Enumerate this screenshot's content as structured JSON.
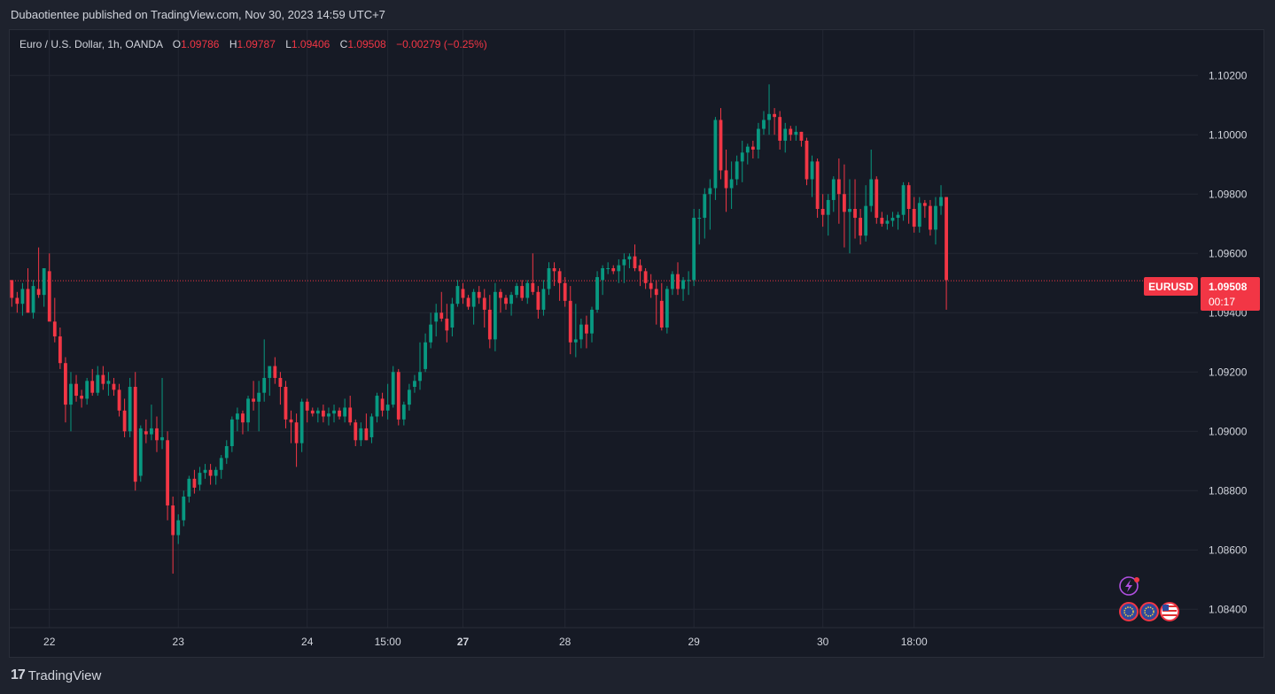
{
  "header": {
    "published_text": "Dubaotientee published on TradingView.com, Nov 30, 2023 14:59 UTC+7"
  },
  "legend": {
    "symbol": "Euro / U.S. Dollar, 1h, OANDA",
    "open_label": "O",
    "open": "1.09786",
    "high_label": "H",
    "high": "1.09787",
    "low_label": "L",
    "low": "1.09406",
    "close_label": "C",
    "close": "1.09508",
    "change": "−0.00279 (−0.25%)"
  },
  "price_tag": {
    "symbol": "EURUSD",
    "price": "1.09508",
    "countdown": "00:17"
  },
  "footer": {
    "brand": "TradingView",
    "logo_mark": "17"
  },
  "colors": {
    "up": "#089981",
    "down": "#f23645",
    "grid": "#232733",
    "background": "#161a25",
    "text": "#d1d4dc",
    "price_line": "#f23645"
  },
  "icons": [
    "lightning-icon",
    "eu-flag-icon",
    "eu-flag-icon",
    "us-flag-icon"
  ],
  "chart_data": {
    "type": "candlestick",
    "title": "Euro / U.S. Dollar, 1h, OANDA",
    "ylim": [
      1.0835,
      1.1035
    ],
    "y_ticks": [
      "1.08400",
      "1.08600",
      "1.08800",
      "1.09000",
      "1.09200",
      "1.09400",
      "1.09600",
      "1.09800",
      "1.10000",
      "1.10200"
    ],
    "x_ticks": [
      {
        "label": "22",
        "bar": 7,
        "bold": false
      },
      {
        "label": "23",
        "bar": 31,
        "bold": false
      },
      {
        "label": "24",
        "bar": 55,
        "bold": false
      },
      {
        "label": "15:00",
        "bar": 70,
        "bold": false
      },
      {
        "label": "27",
        "bar": 84,
        "bold": true
      },
      {
        "label": "28",
        "bar": 103,
        "bold": false
      },
      {
        "label": "29",
        "bar": 127,
        "bold": false
      },
      {
        "label": "30",
        "bar": 151,
        "bold": false
      },
      {
        "label": "18:00",
        "bar": 168,
        "bold": false
      }
    ],
    "grid": true,
    "last_price": 1.09508,
    "candles": [
      [
        1.0951,
        1.0951,
        1.0942,
        1.0945
      ],
      [
        1.0945,
        1.0947,
        1.094,
        1.0943
      ],
      [
        1.0943,
        1.095,
        1.0939,
        1.0948
      ],
      [
        1.0948,
        1.0955,
        1.094,
        1.094
      ],
      [
        1.094,
        1.0951,
        1.0938,
        1.0949
      ],
      [
        1.0948,
        1.0962,
        1.0945,
        1.0946
      ],
      [
        1.0946,
        1.0955,
        1.0942,
        1.0955
      ],
      [
        1.0954,
        1.096,
        1.0938,
        1.0937
      ],
      [
        1.0937,
        1.0945,
        1.093,
        1.0932
      ],
      [
        1.0932,
        1.0935,
        1.0921,
        1.0923
      ],
      [
        1.0923,
        1.0925,
        1.0903,
        1.0909
      ],
      [
        1.0909,
        1.092,
        1.09,
        1.0916
      ],
      [
        1.0916,
        1.0919,
        1.091,
        1.0912
      ],
      [
        1.0912,
        1.0914,
        1.0908,
        1.0911
      ],
      [
        1.0911,
        1.0918,
        1.0909,
        1.0917
      ],
      [
        1.0917,
        1.0921,
        1.0912,
        1.0913
      ],
      [
        1.0913,
        1.0922,
        1.0912,
        1.0919
      ],
      [
        1.0919,
        1.0922,
        1.0914,
        1.0916
      ],
      [
        1.0916,
        1.092,
        1.0912,
        1.0917
      ],
      [
        1.0916,
        1.0918,
        1.0912,
        1.0914
      ],
      [
        1.0914,
        1.0916,
        1.0905,
        1.0907
      ],
      [
        1.0907,
        1.0911,
        1.0898,
        1.09
      ],
      [
        1.09,
        1.0918,
        1.0898,
        1.0915
      ],
      [
        1.0915,
        1.092,
        1.088,
        1.0883
      ],
      [
        1.0885,
        1.0902,
        1.0883,
        1.0901
      ],
      [
        1.09,
        1.0904,
        1.0896,
        1.0899
      ],
      [
        1.0899,
        1.0909,
        1.0897,
        1.0901
      ],
      [
        1.0901,
        1.0905,
        1.0893,
        1.0897
      ],
      [
        1.0897,
        1.0918,
        1.0894,
        1.0898
      ],
      [
        1.0897,
        1.09,
        1.087,
        1.0875
      ],
      [
        1.0875,
        1.0878,
        1.0852,
        1.0865
      ],
      [
        1.0865,
        1.0872,
        1.0862,
        1.087
      ],
      [
        1.087,
        1.088,
        1.0868,
        1.0878
      ],
      [
        1.0878,
        1.0885,
        1.0876,
        1.0884
      ],
      [
        1.0884,
        1.0887,
        1.0879,
        1.0881
      ],
      [
        1.0882,
        1.0888,
        1.088,
        1.0886
      ],
      [
        1.0886,
        1.0889,
        1.0884,
        1.0887
      ],
      [
        1.0887,
        1.0889,
        1.0882,
        1.0885
      ],
      [
        1.0885,
        1.0888,
        1.0882,
        1.0887
      ],
      [
        1.0887,
        1.0892,
        1.0884,
        1.0891
      ],
      [
        1.0891,
        1.0897,
        1.0889,
        1.0895
      ],
      [
        1.0895,
        1.0905,
        1.0893,
        1.0904
      ],
      [
        1.0904,
        1.0908,
        1.09,
        1.0906
      ],
      [
        1.0906,
        1.0907,
        1.0899,
        1.0903
      ],
      [
        1.0903,
        1.0912,
        1.09,
        1.0911
      ],
      [
        1.0911,
        1.0917,
        1.0907,
        1.091
      ],
      [
        1.091,
        1.0917,
        1.09,
        1.0913
      ],
      [
        1.0913,
        1.0931,
        1.091,
        1.0918
      ],
      [
        1.0918,
        1.0922,
        1.0912,
        1.0922
      ],
      [
        1.0922,
        1.0925,
        1.0916,
        1.0918
      ],
      [
        1.0918,
        1.092,
        1.0909,
        1.0915
      ],
      [
        1.0915,
        1.0917,
        1.0901,
        1.0904
      ],
      [
        1.0904,
        1.0907,
        1.0896,
        1.0903
      ],
      [
        1.0903,
        1.0906,
        1.0888,
        1.0896
      ],
      [
        1.0896,
        1.0911,
        1.0893,
        1.091
      ],
      [
        1.091,
        1.0911,
        1.0903,
        1.0907
      ],
      [
        1.0907,
        1.0908,
        1.0905,
        1.0906
      ],
      [
        1.0906,
        1.0908,
        1.0903,
        1.0907
      ],
      [
        1.0907,
        1.0909,
        1.0903,
        1.0905
      ],
      [
        1.0905,
        1.0908,
        1.0902,
        1.0906
      ],
      [
        1.0906,
        1.0909,
        1.0903,
        1.0907
      ],
      [
        1.0907,
        1.0908,
        1.0904,
        1.0905
      ],
      [
        1.0905,
        1.0911,
        1.0903,
        1.0908
      ],
      [
        1.0908,
        1.0912,
        1.0902,
        1.0903
      ],
      [
        1.0903,
        1.0904,
        1.0895,
        1.0897
      ],
      [
        1.0897,
        1.0903,
        1.0895,
        1.0901
      ],
      [
        1.0901,
        1.0906,
        1.0897,
        1.0897
      ],
      [
        1.0898,
        1.0906,
        1.0896,
        1.0905
      ],
      [
        1.0905,
        1.0913,
        1.0903,
        1.0912
      ],
      [
        1.0911,
        1.0913,
        1.0905,
        1.0907
      ],
      [
        1.0907,
        1.0916,
        1.0904,
        1.0909
      ],
      [
        1.0909,
        1.0922,
        1.0908,
        1.092
      ],
      [
        1.092,
        1.0921,
        1.0902,
        1.0904
      ],
      [
        1.0904,
        1.091,
        1.0902,
        1.0909
      ],
      [
        1.0909,
        1.0916,
        1.0907,
        1.0914
      ],
      [
        1.0915,
        1.0919,
        1.0913,
        1.0917
      ],
      [
        1.0917,
        1.093,
        1.0914,
        1.092
      ],
      [
        1.0921,
        1.0933,
        1.092,
        1.093
      ],
      [
        1.093,
        1.094,
        1.0928,
        1.0936
      ],
      [
        1.0937,
        1.0943,
        1.0932,
        1.094
      ],
      [
        1.094,
        1.0947,
        1.0937,
        1.0938
      ],
      [
        1.0938,
        1.0943,
        1.093,
        1.0934
      ],
      [
        1.0935,
        1.0945,
        1.0932,
        1.0943
      ],
      [
        1.0943,
        1.0951,
        1.0942,
        1.0949
      ],
      [
        1.0948,
        1.095,
        1.0943,
        1.0945
      ],
      [
        1.0945,
        1.0946,
        1.0941,
        1.0942
      ],
      [
        1.0942,
        1.0948,
        1.0936,
        1.0947
      ],
      [
        1.0947,
        1.0949,
        1.0943,
        1.0945
      ],
      [
        1.0945,
        1.0948,
        1.0935,
        1.0941
      ],
      [
        1.0941,
        1.0946,
        1.0928,
        1.0931
      ],
      [
        1.0931,
        1.095,
        1.0927,
        1.0947
      ],
      [
        1.0947,
        1.0948,
        1.094,
        1.0945
      ],
      [
        1.0945,
        1.0946,
        1.0941,
        1.0943
      ],
      [
        1.0943,
        1.0947,
        1.0939,
        1.0946
      ],
      [
        1.0946,
        1.095,
        1.0945,
        1.0949
      ],
      [
        1.0949,
        1.0951,
        1.0944,
        1.0945
      ],
      [
        1.0945,
        1.0951,
        1.0943,
        1.095
      ],
      [
        1.095,
        1.096,
        1.0946,
        1.0947
      ],
      [
        1.0947,
        1.0949,
        1.0938,
        1.0941
      ],
      [
        1.0941,
        1.0951,
        1.0939,
        1.0948
      ],
      [
        1.0948,
        1.0957,
        1.0946,
        1.0955
      ],
      [
        1.0955,
        1.0957,
        1.0949,
        1.0954
      ],
      [
        1.0954,
        1.0955,
        1.0944,
        1.095
      ],
      [
        1.095,
        1.0952,
        1.0942,
        1.0944
      ],
      [
        1.0944,
        1.0949,
        1.0926,
        1.093
      ],
      [
        1.093,
        1.0943,
        1.0925,
        1.0931
      ],
      [
        1.0931,
        1.0938,
        1.0928,
        1.0936
      ],
      [
        1.0936,
        1.0939,
        1.0928,
        1.0933
      ],
      [
        1.0933,
        1.0942,
        1.093,
        1.0941
      ],
      [
        1.0941,
        1.0954,
        1.094,
        1.0952
      ],
      [
        1.0951,
        1.0956,
        1.0946,
        1.0955
      ],
      [
        1.0955,
        1.0957,
        1.0953,
        1.0955
      ],
      [
        1.0955,
        1.0956,
        1.0953,
        1.0954
      ],
      [
        1.0954,
        1.0958,
        1.095,
        1.0956
      ],
      [
        1.0956,
        1.096,
        1.095,
        1.0958
      ],
      [
        1.0958,
        1.096,
        1.0955,
        1.0959
      ],
      [
        1.0959,
        1.0963,
        1.0954,
        1.0955
      ],
      [
        1.0956,
        1.0958,
        1.0949,
        1.0954
      ],
      [
        1.0954,
        1.0955,
        1.0948,
        1.095
      ],
      [
        1.095,
        1.0953,
        1.0945,
        1.0948
      ],
      [
        1.0948,
        1.0951,
        1.0936,
        1.0946
      ],
      [
        1.0944,
        1.095,
        1.0934,
        1.0935
      ],
      [
        1.0935,
        1.0949,
        1.0933,
        1.0948
      ],
      [
        1.0948,
        1.0954,
        1.0946,
        1.0953
      ],
      [
        1.0953,
        1.0957,
        1.0946,
        1.0948
      ],
      [
        1.0948,
        1.0952,
        1.0944,
        1.0951
      ],
      [
        1.0951,
        1.0954,
        1.0946,
        1.0951
      ],
      [
        1.0951,
        1.0975,
        1.0949,
        1.0972
      ],
      [
        1.0972,
        1.0975,
        1.0963,
        1.0972
      ],
      [
        1.0972,
        1.0982,
        1.0965,
        1.098
      ],
      [
        1.098,
        1.0985,
        1.0968,
        1.0982
      ],
      [
        1.0982,
        1.1006,
        1.0978,
        1.1005
      ],
      [
        1.1005,
        1.1009,
        1.0985,
        1.0988
      ],
      [
        1.0988,
        1.0995,
        1.0974,
        1.0982
      ],
      [
        1.0982,
        1.0991,
        1.0975,
        1.0985
      ],
      [
        1.0985,
        1.0993,
        1.0983,
        1.0991
      ],
      [
        1.0991,
        1.0998,
        1.0984,
        1.0994
      ],
      [
        1.0994,
        1.0997,
        1.099,
        1.0996
      ],
      [
        1.0996,
        1.0998,
        1.0992,
        1.0995
      ],
      [
        1.0995,
        1.1004,
        1.0992,
        1.1002
      ],
      [
        1.1002,
        1.1008,
        1.1,
        1.1005
      ],
      [
        1.1005,
        1.1017,
        1.1,
        1.1007
      ],
      [
        1.1007,
        1.1009,
        1.1,
        1.1006
      ],
      [
        1.1006,
        1.1008,
        1.0995,
        1.0998
      ],
      [
        1.0998,
        1.1004,
        1.0994,
        1.1002
      ],
      [
        1.1002,
        1.1003,
        1.0998,
        1.1
      ],
      [
        1.1,
        1.1003,
        1.0998,
        1.1001
      ],
      [
        1.1001,
        1.1001,
        1.0996,
        1.0998
      ],
      [
        1.0998,
        1.0999,
        1.0983,
        1.0985
      ],
      [
        1.0985,
        1.0993,
        1.0979,
        1.0991
      ],
      [
        1.0991,
        1.0992,
        1.0972,
        1.0975
      ],
      [
        1.0975,
        1.098,
        1.0969,
        1.0973
      ],
      [
        1.0973,
        1.098,
        1.0966,
        1.0978
      ],
      [
        1.0978,
        1.0986,
        1.0974,
        1.0985
      ],
      [
        1.0985,
        1.0992,
        1.097,
        1.098
      ],
      [
        1.098,
        1.099,
        1.0962,
        1.0974
      ],
      [
        1.0974,
        1.0985,
        1.096,
        1.0975
      ],
      [
        1.0975,
        1.0985,
        1.0965,
        1.0972
      ],
      [
        1.0972,
        1.0975,
        1.0963,
        1.0966
      ],
      [
        1.0966,
        1.0983,
        1.0964,
        1.0976
      ],
      [
        1.0976,
        1.0995,
        1.0974,
        1.0985
      ],
      [
        1.0985,
        1.0986,
        1.097,
        1.0972
      ],
      [
        1.0972,
        1.0974,
        1.0969,
        1.097
      ],
      [
        1.097,
        1.0973,
        1.0968,
        1.0971
      ],
      [
        1.0971,
        1.0974,
        1.0969,
        1.0972
      ],
      [
        1.0972,
        1.0974,
        1.0968,
        1.0973
      ],
      [
        1.0973,
        1.0984,
        1.0971,
        1.0983
      ],
      [
        1.0983,
        1.0984,
        1.097,
        1.0975
      ],
      [
        1.0975,
        1.0979,
        1.0967,
        1.0969
      ],
      [
        1.0969,
        1.0979,
        1.0967,
        1.0977
      ],
      [
        1.0977,
        1.0978,
        1.0972,
        1.0976
      ],
      [
        1.0976,
        1.0978,
        1.0966,
        1.0968
      ],
      [
        1.0968,
        1.0979,
        1.0963,
        1.0976
      ],
      [
        1.0976,
        1.0983,
        1.0973,
        1.0979
      ],
      [
        1.0979,
        1.0979,
        1.0941,
        1.0951
      ]
    ]
  }
}
